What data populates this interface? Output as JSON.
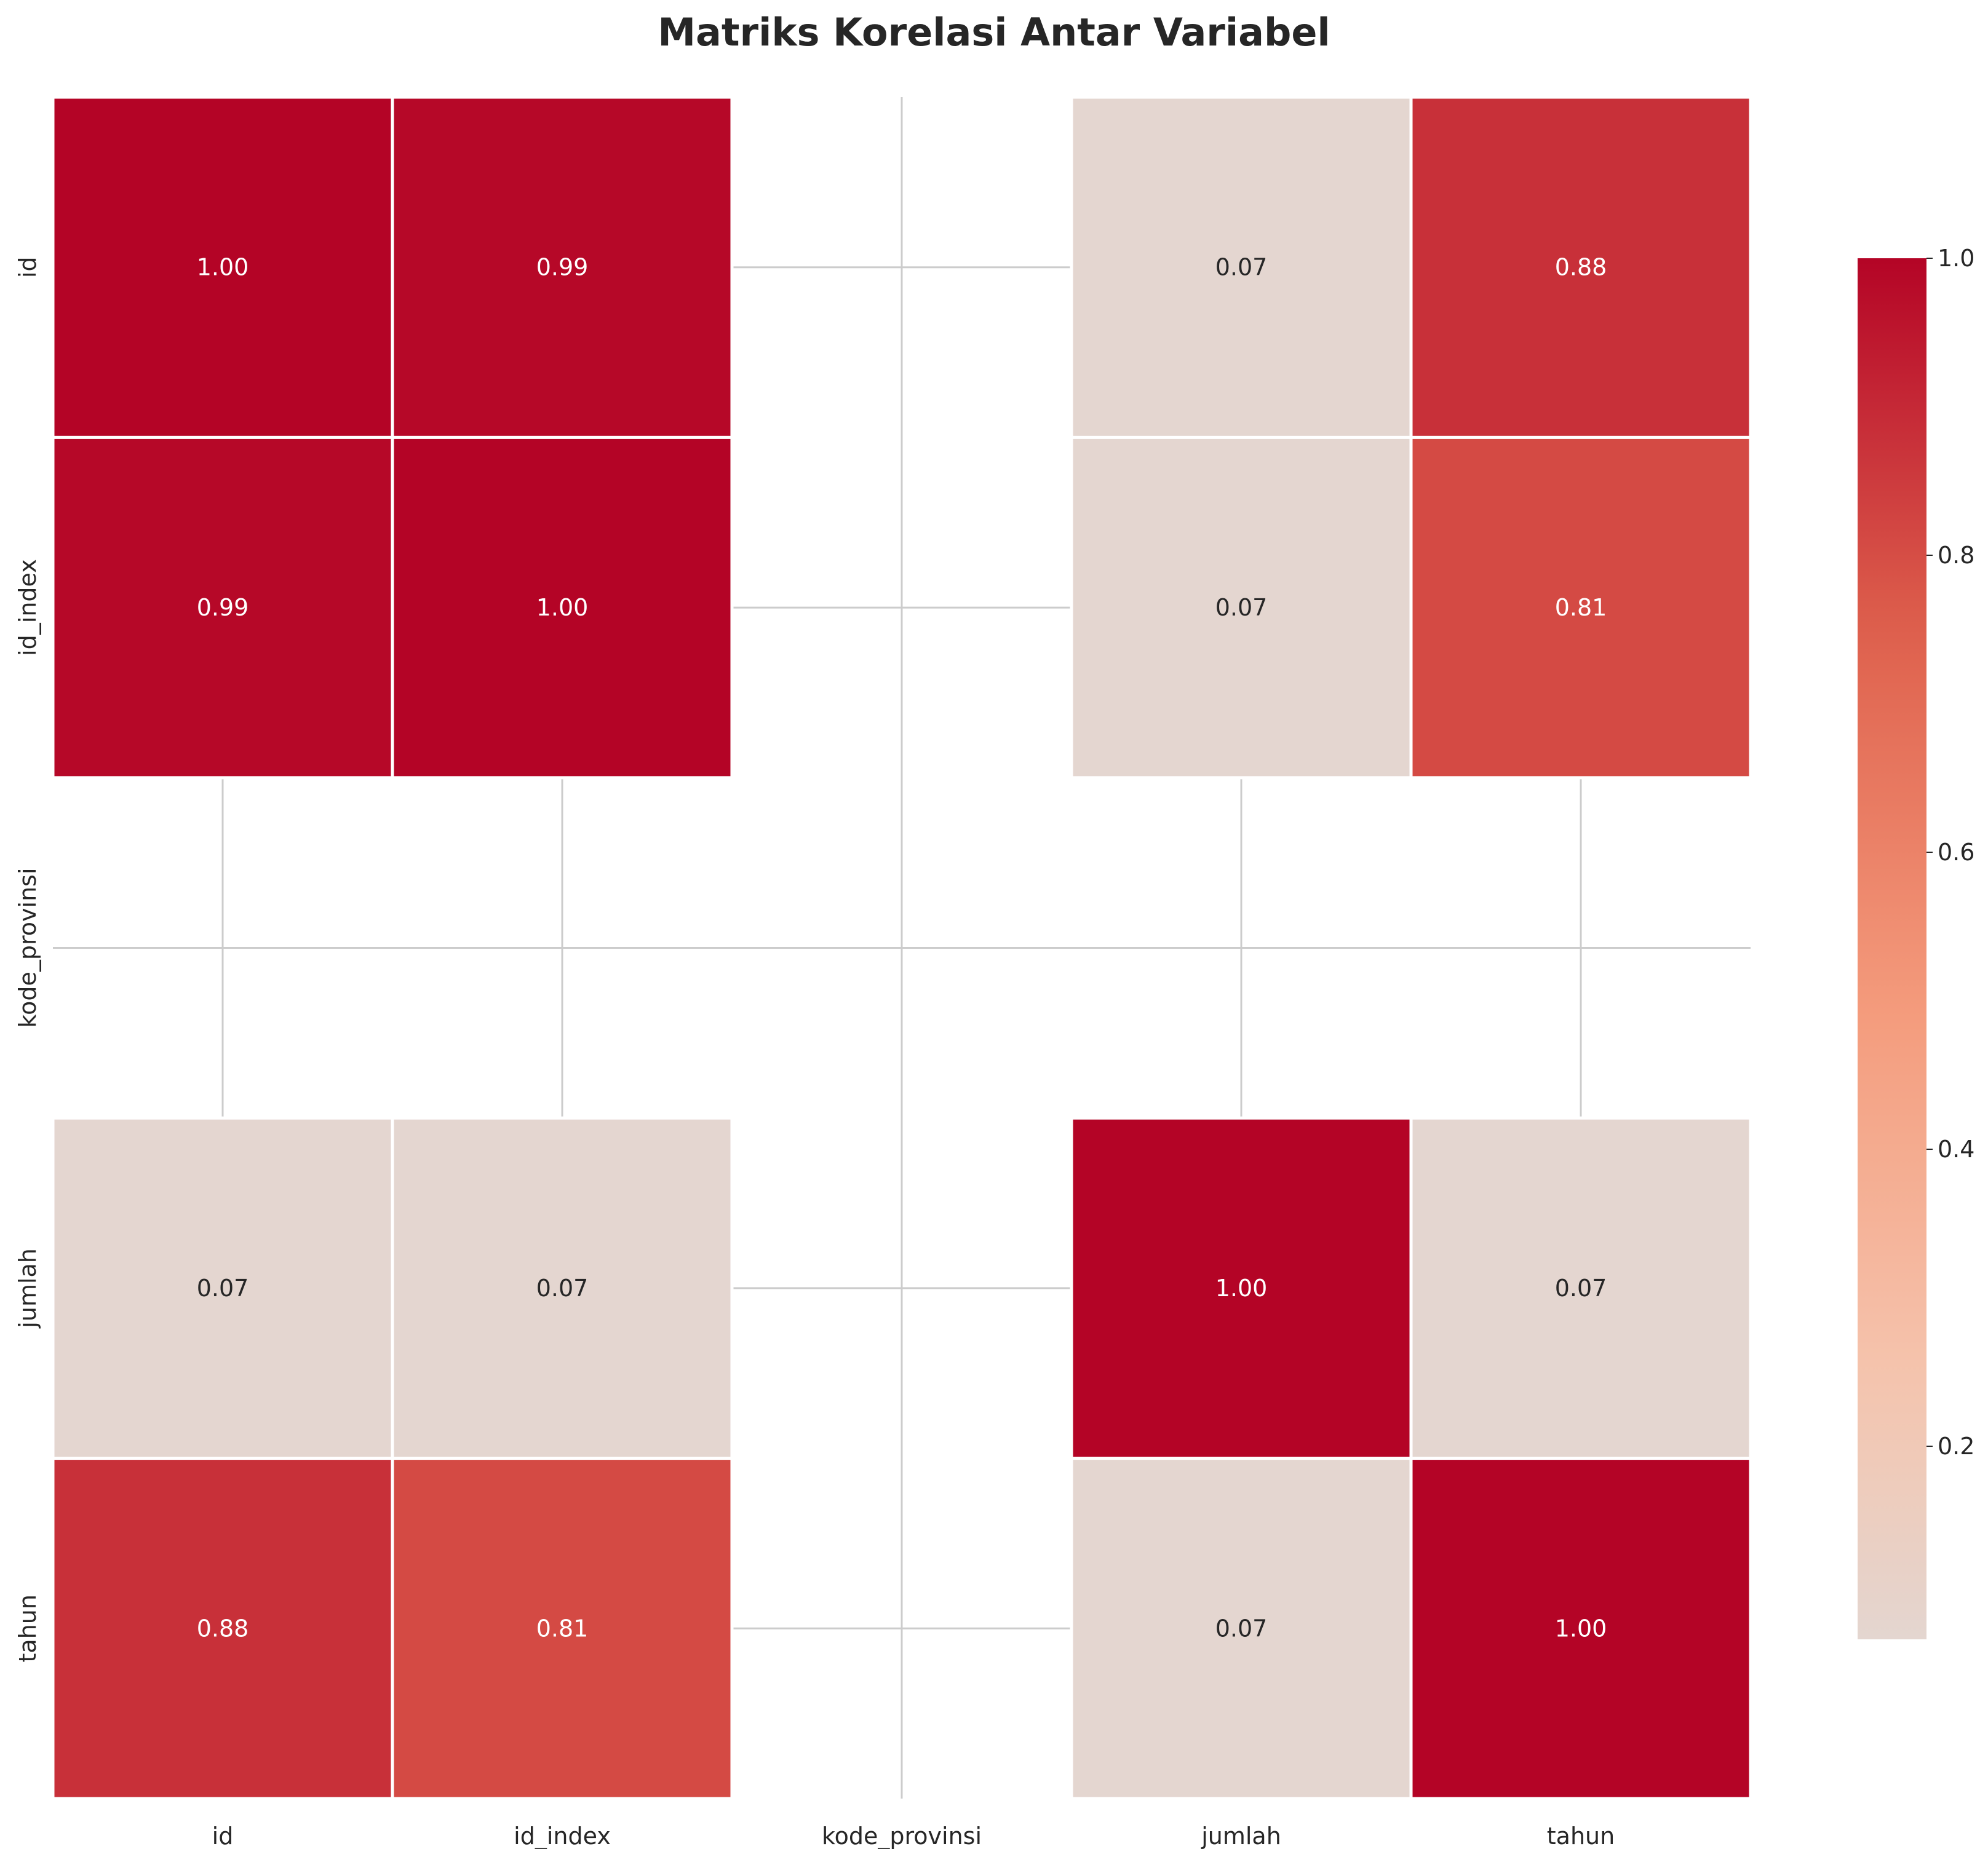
{
  "chart_data": {
    "type": "heatmap",
    "title": "Matriks Korelasi Antar Variabel",
    "xlabel": "",
    "ylabel": "",
    "x_categories": [
      "id",
      "id_index",
      "kode_provinsi",
      "jumlah",
      "tahun"
    ],
    "y_categories": [
      "id",
      "id_index",
      "kode_provinsi",
      "jumlah",
      "tahun"
    ],
    "values": [
      [
        1.0,
        0.99,
        null,
        0.07,
        0.88
      ],
      [
        0.99,
        1.0,
        null,
        0.07,
        0.81
      ],
      [
        null,
        null,
        null,
        null,
        null
      ],
      [
        0.07,
        0.07,
        null,
        1.0,
        0.07
      ],
      [
        0.88,
        0.81,
        null,
        0.07,
        1.0
      ]
    ],
    "value_format": "0.00",
    "missing_values": "blank",
    "colorbar": {
      "min": 0.07,
      "max": 1.0,
      "ticks": [
        0.2,
        0.4,
        0.6,
        0.8,
        1.0
      ],
      "tick_labels": [
        "0.2",
        "0.4",
        "0.6",
        "0.8",
        "1.0"
      ],
      "colormap": "coolwarm",
      "center": 0
    },
    "grid": true,
    "legend": "colorbar-right"
  }
}
